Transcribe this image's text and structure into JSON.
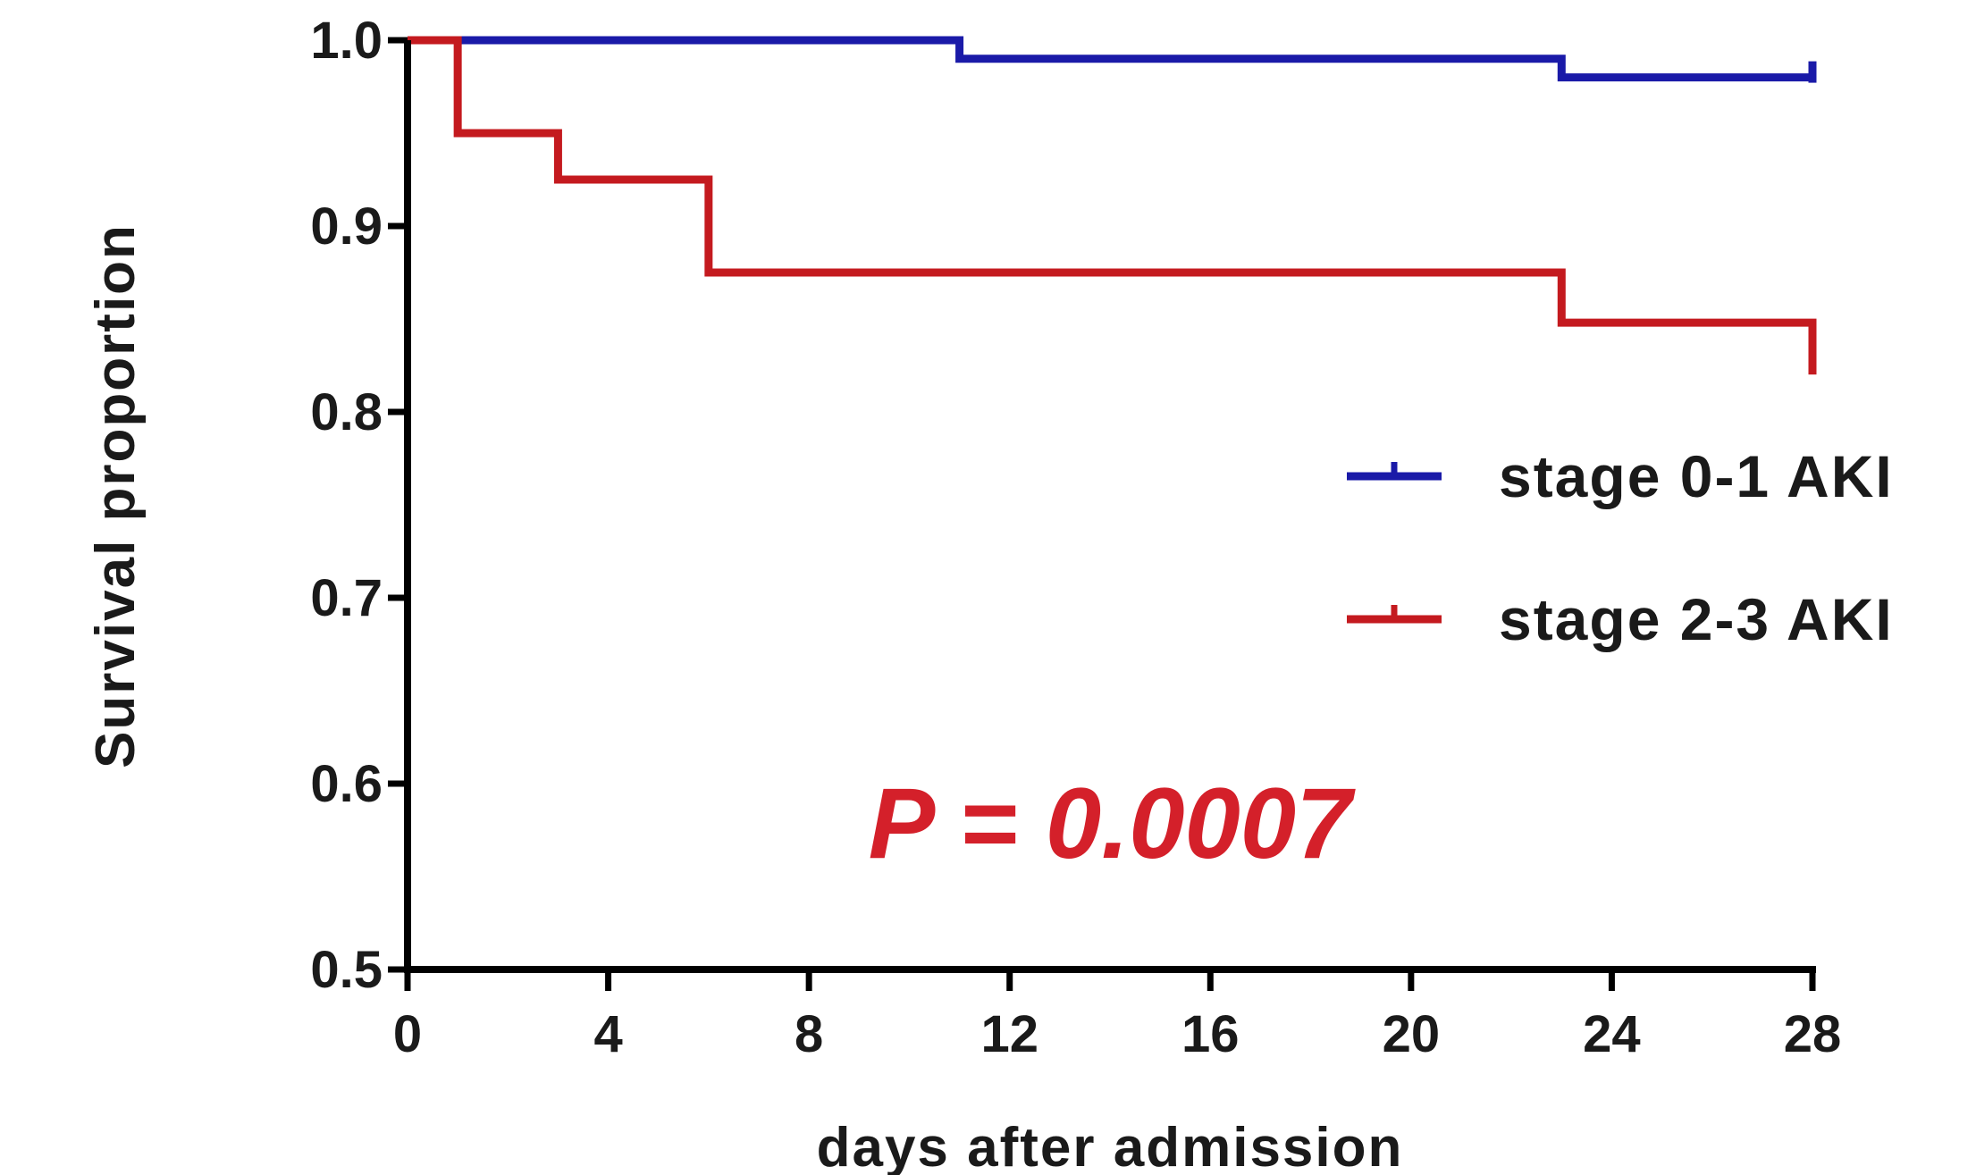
{
  "chart_data": {
    "type": "line",
    "step": true,
    "xlabel": "days after admission",
    "ylabel": "Survival proportion",
    "xlim": [
      0,
      28
    ],
    "ylim": [
      0.5,
      1.0
    ],
    "x_ticks": [
      0,
      4,
      8,
      12,
      16,
      20,
      24,
      28
    ],
    "y_ticks": [
      0.5,
      0.6,
      0.7,
      0.8,
      0.9,
      1.0
    ],
    "x_tick_labels": [
      "0",
      "4",
      "8",
      "12",
      "16",
      "20",
      "24",
      "28"
    ],
    "y_tick_labels": [
      "0.5",
      "0.6",
      "0.7",
      "0.8",
      "0.9",
      "1.0"
    ],
    "legend_position": "right",
    "series": [
      {
        "name": "stage 0-1 AKI",
        "color": "#1a1aa8",
        "x": [
          0,
          11,
          23,
          28
        ],
        "y": [
          1.0,
          0.99,
          0.98,
          0.98
        ]
      },
      {
        "name": "stage 2-3 AKI",
        "color": "#c41a1f",
        "x": [
          0,
          1,
          3,
          6,
          23,
          28
        ],
        "y": [
          1.0,
          0.95,
          0.925,
          0.875,
          0.848,
          0.823
        ]
      }
    ],
    "annotations": [
      {
        "text": "P = 0.0007",
        "color": "#d4202a"
      }
    ]
  }
}
